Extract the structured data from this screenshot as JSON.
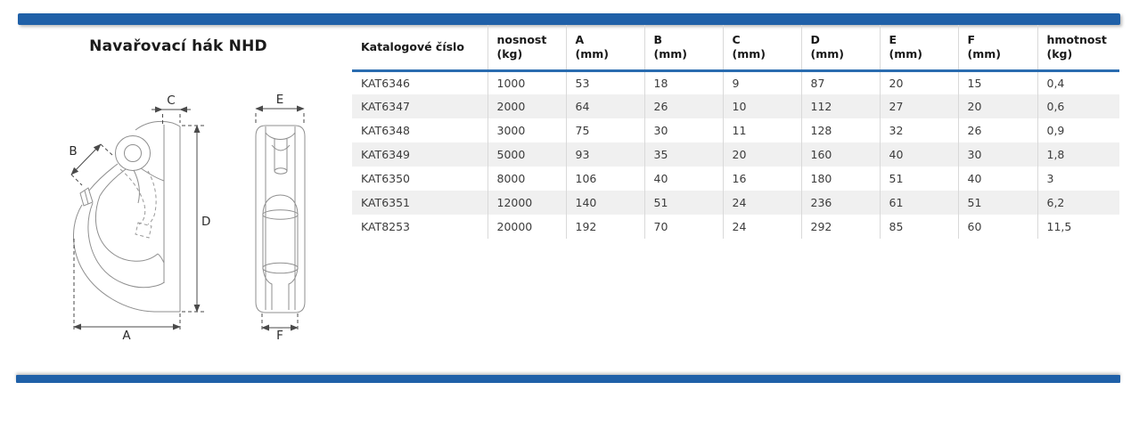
{
  "page": {
    "title": "Navařovací hák NHD"
  },
  "colors": {
    "accent_blue": "#1f60a8",
    "header_rule_blue": "#2a6cb0",
    "row_alt_gray": "#f0f0f0",
    "grid_gray": "#d9d9d9"
  },
  "diagram": {
    "description": "weld-on hook technical drawing, side view and front view",
    "dimension_labels": {
      "a": "A",
      "b": "B",
      "c": "C",
      "d": "D",
      "e": "E",
      "f": "F"
    }
  },
  "table": {
    "columns": [
      {
        "label": "Katalogové číslo",
        "unit": ""
      },
      {
        "label": "nosnost",
        "unit": "(kg)"
      },
      {
        "label": "A",
        "unit": "(mm)"
      },
      {
        "label": "B",
        "unit": "(mm)"
      },
      {
        "label": "C",
        "unit": "(mm)"
      },
      {
        "label": "D",
        "unit": "(mm)"
      },
      {
        "label": "E",
        "unit": "(mm)"
      },
      {
        "label": "F",
        "unit": "(mm)"
      },
      {
        "label": "hmotnost",
        "unit": "(kg)"
      }
    ],
    "rows": [
      [
        "KAT6346",
        "1000",
        "53",
        "18",
        "9",
        "87",
        "20",
        "15",
        "0,4"
      ],
      [
        "KAT6347",
        "2000",
        "64",
        "26",
        "10",
        "112",
        "27",
        "20",
        "0,6"
      ],
      [
        "KAT6348",
        "3000",
        "75",
        "30",
        "11",
        "128",
        "32",
        "26",
        "0,9"
      ],
      [
        "KAT6349",
        "5000",
        "93",
        "35",
        "20",
        "160",
        "40",
        "30",
        "1,8"
      ],
      [
        "KAT6350",
        "8000",
        "106",
        "40",
        "16",
        "180",
        "51",
        "40",
        "3"
      ],
      [
        "KAT6351",
        "12000",
        "140",
        "51",
        "24",
        "236",
        "61",
        "51",
        "6,2"
      ],
      [
        "KAT8253",
        "20000",
        "192",
        "70",
        "24",
        "292",
        "85",
        "60",
        "11,5"
      ]
    ]
  }
}
